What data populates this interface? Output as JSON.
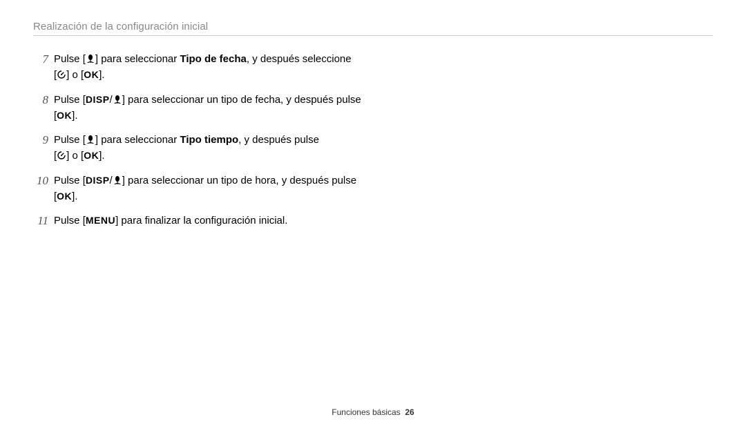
{
  "section_title": "Realización de la configuración inicial",
  "footer": {
    "label": "Funciones básicas",
    "page": "26"
  },
  "icons": {
    "macro_alt": "macro-flower icon",
    "timer_alt": "self-timer icon"
  },
  "labels": {
    "ok": "OK",
    "disp": "DISP",
    "menu": "MENU"
  },
  "steps": [
    {
      "num": "7",
      "parts": [
        {
          "t": "text",
          "v": "Pulse ["
        },
        {
          "t": "icon",
          "v": "macro"
        },
        {
          "t": "text",
          "v": "] para seleccionar "
        },
        {
          "t": "bold",
          "v": "Tipo de fecha"
        },
        {
          "t": "text",
          "v": ", y después seleccione "
        },
        {
          "t": "br"
        },
        {
          "t": "text",
          "v": "["
        },
        {
          "t": "icon",
          "v": "timer"
        },
        {
          "t": "text",
          "v": "] o ["
        },
        {
          "t": "ok"
        },
        {
          "t": "text",
          "v": "]."
        }
      ]
    },
    {
      "num": "8",
      "parts": [
        {
          "t": "text",
          "v": "Pulse ["
        },
        {
          "t": "disp"
        },
        {
          "t": "text",
          "v": "/"
        },
        {
          "t": "icon",
          "v": "macro"
        },
        {
          "t": "text",
          "v": "] para seleccionar un tipo de fecha, y después pulse "
        },
        {
          "t": "br"
        },
        {
          "t": "text",
          "v": "["
        },
        {
          "t": "ok"
        },
        {
          "t": "text",
          "v": "]."
        }
      ]
    },
    {
      "num": "9",
      "parts": [
        {
          "t": "text",
          "v": "Pulse ["
        },
        {
          "t": "icon",
          "v": "macro"
        },
        {
          "t": "text",
          "v": "] para seleccionar "
        },
        {
          "t": "bold",
          "v": "Tipo tiempo"
        },
        {
          "t": "text",
          "v": ", y después pulse "
        },
        {
          "t": "br"
        },
        {
          "t": "text",
          "v": "["
        },
        {
          "t": "icon",
          "v": "timer"
        },
        {
          "t": "text",
          "v": "] o ["
        },
        {
          "t": "ok"
        },
        {
          "t": "text",
          "v": "]."
        }
      ]
    },
    {
      "num": "10",
      "parts": [
        {
          "t": "text",
          "v": "Pulse ["
        },
        {
          "t": "disp"
        },
        {
          "t": "text",
          "v": "/"
        },
        {
          "t": "icon",
          "v": "macro"
        },
        {
          "t": "text",
          "v": "] para seleccionar un tipo de hora, y después pulse "
        },
        {
          "t": "br"
        },
        {
          "t": "text",
          "v": "["
        },
        {
          "t": "ok"
        },
        {
          "t": "text",
          "v": "]."
        }
      ]
    },
    {
      "num": "11",
      "parts": [
        {
          "t": "text",
          "v": "Pulse ["
        },
        {
          "t": "menu"
        },
        {
          "t": "text",
          "v": "] para finalizar la configuración inicial."
        }
      ]
    }
  ]
}
